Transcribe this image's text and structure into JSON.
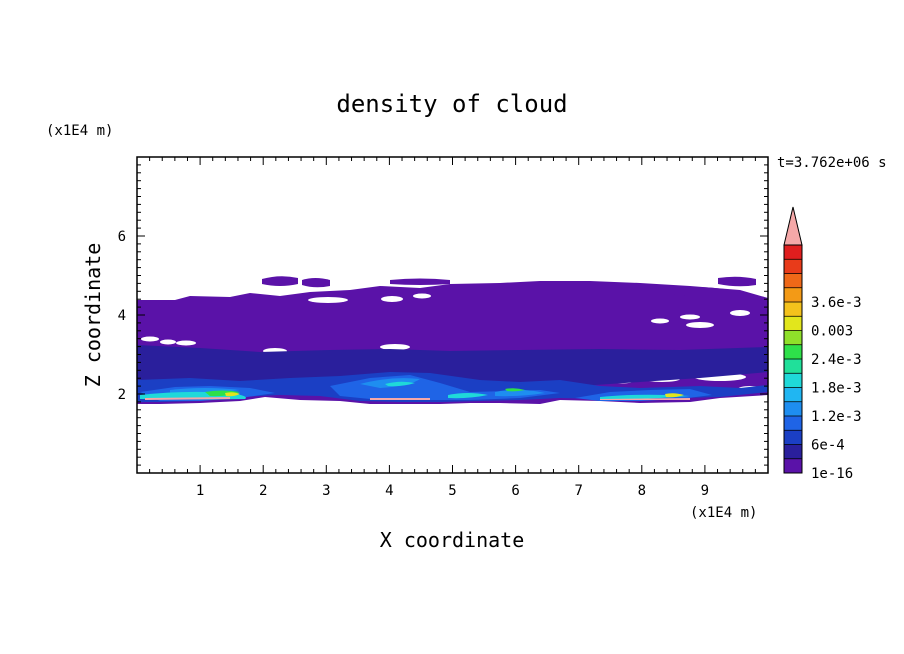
{
  "chart_data": {
    "type": "heatmap",
    "title": "density of cloud",
    "xlabel": "X coordinate",
    "ylabel": "Z coordinate",
    "x_unit": "(x1E4 m)",
    "y_unit": "(x1E4 m)",
    "time_label": "t=3.762e+06 s",
    "xlim": [
      0,
      10
    ],
    "ylim": [
      0,
      8
    ],
    "x_ticks": [
      "1",
      "2",
      "3",
      "4",
      "5",
      "6",
      "7",
      "8",
      "9"
    ],
    "y_ticks": [
      "2",
      "4",
      "6"
    ],
    "colorbar": {
      "labels": [
        "1e-16",
        "6e-4",
        "1.2e-3",
        "1.8e-3",
        "2.4e-3",
        "0.003",
        "3.6e-3"
      ],
      "colors": [
        "#5a12a8",
        "#2a1f9c",
        "#1b3fc4",
        "#1f64e6",
        "#1e8ef0",
        "#20b6f2",
        "#1fd9d9",
        "#20e09a",
        "#2ee04a",
        "#8fe02a",
        "#e2e61c",
        "#f4c21c",
        "#f39a16",
        "#ef6818",
        "#e83b1a",
        "#e01e1e"
      ],
      "extend_color": "#f5a8a8",
      "extend": "max"
    },
    "layers": [
      {
        "level": "1e-16",
        "color": "#5a12a8",
        "x": [
          0,
          10
        ],
        "z": [
          1.8,
          4.9
        ]
      },
      {
        "level": "6e-4",
        "color": "#1b3fc4",
        "x": [
          0,
          10
        ],
        "z": [
          1.8,
          2.6
        ]
      },
      {
        "level": "1.8e-3",
        "color": "#1fd9d9",
        "x": [
          0.1,
          8.9
        ],
        "z": [
          1.8,
          2.3
        ]
      },
      {
        "level": "2.4e-3",
        "color": "#e2e61c",
        "x": [
          1.2,
          1.8
        ],
        "z": [
          1.85,
          2.1
        ]
      },
      {
        "level": "3.6e-3",
        "color": "#f5a8a8",
        "x": [
          7.5,
          8.5
        ],
        "z": [
          1.85,
          2.0
        ]
      }
    ]
  }
}
